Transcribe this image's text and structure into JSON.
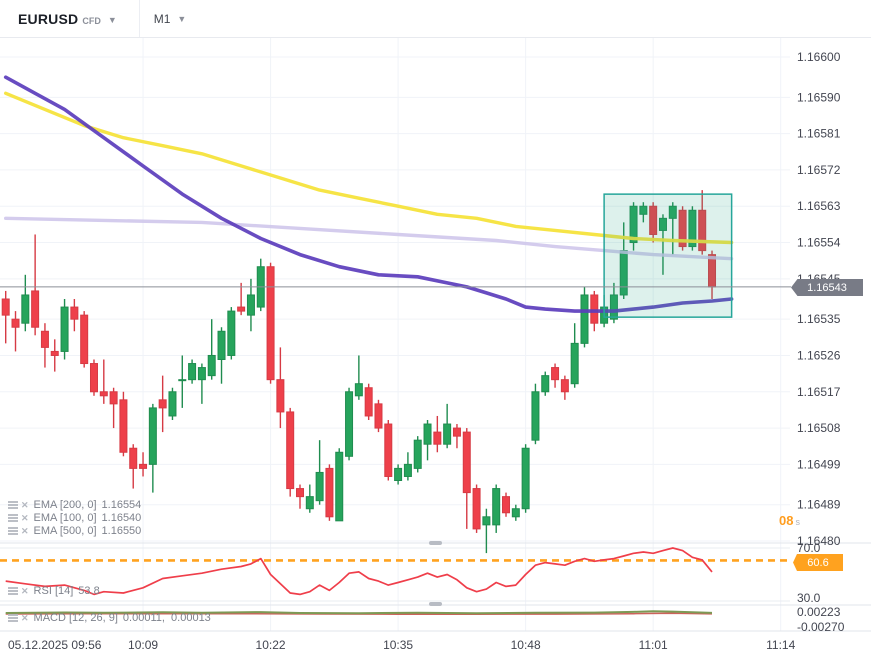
{
  "header": {
    "symbol": "EURUSD",
    "instrument_type": "CFD",
    "timeframe": "M1"
  },
  "legend": {
    "ema": [
      {
        "label": "EMA [200, 0]",
        "value": "1.16554"
      },
      {
        "label": "EMA [100, 0]",
        "value": "1.16540"
      },
      {
        "label": "EMA [500, 0]",
        "value": "1.16550"
      }
    ],
    "rsi": {
      "label": "RSI [14]",
      "value": "53.8"
    },
    "macd": {
      "label": "MACD [12, 26, 9]",
      "value": "0.00011,  0.00013"
    }
  },
  "price_axis_labels": [
    "1.16600",
    "1.16590",
    "1.16581",
    "1.16572",
    "1.16563",
    "1.16554",
    "1.16545",
    "1.16535",
    "1.16526",
    "1.16517",
    "1.16508",
    "1.16499",
    "1.16489",
    "1.16480"
  ],
  "rsi_scale_labels": [
    "70.0",
    "30.0"
  ],
  "macd_scale_labels": [
    "0.00223",
    "-0.00270"
  ],
  "time_ticks": [
    {
      "i": 1,
      "text": "05.12.2025  09:56",
      "grid": false
    },
    {
      "i": 14,
      "text": "10:09",
      "grid": true
    },
    {
      "i": 27,
      "text": "10:22",
      "grid": true
    },
    {
      "i": 40,
      "text": "10:35",
      "grid": true
    },
    {
      "i": 53,
      "text": "10:48",
      "grid": true
    },
    {
      "i": 66,
      "text": "11:01",
      "grid": true
    },
    {
      "i": 79,
      "text": "11:14",
      "grid": true
    }
  ],
  "badges": {
    "current_price": "1.16543",
    "rsi_level": "60.6",
    "countdown": "08",
    "countdown_unit": "s"
  },
  "colors": {
    "candle_up": "#26a45c",
    "candle_up_stroke": "#1f8c4f",
    "candle_down": "#ee404a",
    "candle_down_stroke": "#d63a44",
    "ema200": "#f5e33c",
    "ema100": "#5b3dbc",
    "ema500": "#ccc3ea",
    "price_line": "#8b8f98",
    "price_badge_bg": "#787b86",
    "selection_box_stroke": "#26a69a",
    "selection_box_fill": "rgba(42,167,136,0.16)",
    "rsi_line": "#ef3e4a",
    "rsi_dashed": "#ffa21f",
    "macd_line": "#7d9a55",
    "macd_signal": "#c85149",
    "grid": "#f0f3f8",
    "pane_border": "#e2e5eb",
    "axis_text": "#434651"
  },
  "chart_data": {
    "type": "candlestick",
    "symbol": "EURUSD",
    "interval": "1m",
    "start_time": "09:55",
    "date": "05.12.2025",
    "y_axis_range": [
      1.1648,
      1.166
    ],
    "current_price": 1.16543,
    "candles": [
      [
        1.1654,
        1.16542,
        1.16529,
        1.16536
      ],
      [
        1.16535,
        1.16537,
        1.16527,
        1.16533
      ],
      [
        1.16534,
        1.16546,
        1.16532,
        1.16541
      ],
      [
        1.16542,
        1.16556,
        1.16531,
        1.16533
      ],
      [
        1.16532,
        1.16534,
        1.16523,
        1.16528
      ],
      [
        1.16527,
        1.1653,
        1.16522,
        1.16526
      ],
      [
        1.16527,
        1.1654,
        1.16525,
        1.16538
      ],
      [
        1.16538,
        1.1654,
        1.16532,
        1.16535
      ],
      [
        1.16536,
        1.16537,
        1.16523,
        1.16524
      ],
      [
        1.16524,
        1.16525,
        1.16516,
        1.16517
      ],
      [
        1.16517,
        1.16525,
        1.16514,
        1.16516
      ],
      [
        1.16517,
        1.16518,
        1.16508,
        1.16514
      ],
      [
        1.16515,
        1.16517,
        1.16501,
        1.16502
      ],
      [
        1.16503,
        1.16504,
        1.16493,
        1.16498
      ],
      [
        1.16499,
        1.16502,
        1.16496,
        1.16498
      ],
      [
        1.16499,
        1.16514,
        1.16492,
        1.16513
      ],
      [
        1.16515,
        1.16521,
        1.16507,
        1.16513
      ],
      [
        1.16511,
        1.16518,
        1.1651,
        1.16517
      ],
      [
        1.1652,
        1.16526,
        1.16513,
        1.1652
      ],
      [
        1.1652,
        1.16525,
        1.16519,
        1.16524
      ],
      [
        1.1652,
        1.16524,
        1.16514,
        1.16523
      ],
      [
        1.16521,
        1.16535,
        1.1652,
        1.16526
      ],
      [
        1.16525,
        1.16533,
        1.16519,
        1.16532
      ],
      [
        1.16526,
        1.16538,
        1.16525,
        1.16537
      ],
      [
        1.16538,
        1.16544,
        1.16536,
        1.16537
      ],
      [
        1.16536,
        1.16545,
        1.16532,
        1.16541
      ],
      [
        1.16538,
        1.1655,
        1.16537,
        1.16548
      ],
      [
        1.16548,
        1.16549,
        1.16519,
        1.1652
      ],
      [
        1.1652,
        1.16528,
        1.16508,
        1.16512
      ],
      [
        1.16512,
        1.16513,
        1.16491,
        1.16493
      ],
      [
        1.16493,
        1.16494,
        1.16488,
        1.16491
      ],
      [
        1.16488,
        1.16494,
        1.16487,
        1.16491
      ],
      [
        1.1649,
        1.16505,
        1.16489,
        1.16497
      ],
      [
        1.16498,
        1.16499,
        1.16485,
        1.16486
      ],
      [
        1.16485,
        1.16503,
        1.16485,
        1.16502
      ],
      [
        1.16501,
        1.16518,
        1.165,
        1.16517
      ],
      [
        1.16516,
        1.16526,
        1.16515,
        1.16519
      ],
      [
        1.16518,
        1.16519,
        1.1651,
        1.16511
      ],
      [
        1.16514,
        1.16515,
        1.16507,
        1.16508
      ],
      [
        1.16509,
        1.1651,
        1.16495,
        1.16496
      ],
      [
        1.16495,
        1.16499,
        1.16494,
        1.16498
      ],
      [
        1.16496,
        1.16502,
        1.16495,
        1.16499
      ],
      [
        1.16498,
        1.16506,
        1.16497,
        1.16505
      ],
      [
        1.16504,
        1.1651,
        1.165,
        1.16509
      ],
      [
        1.16507,
        1.16511,
        1.16502,
        1.16504
      ],
      [
        1.16504,
        1.16514,
        1.16503,
        1.16509
      ],
      [
        1.16508,
        1.16509,
        1.16503,
        1.16506
      ],
      [
        1.16507,
        1.16508,
        1.16483,
        1.16492
      ],
      [
        1.16493,
        1.16494,
        1.16482,
        1.16483
      ],
      [
        1.16484,
        1.16488,
        1.16477,
        1.16486
      ],
      [
        1.16484,
        1.16494,
        1.16482,
        1.16493
      ],
      [
        1.16491,
        1.16492,
        1.16486,
        1.16487
      ],
      [
        1.16486,
        1.16489,
        1.16485,
        1.16488
      ],
      [
        1.16488,
        1.16504,
        1.16487,
        1.16503
      ],
      [
        1.16505,
        1.16519,
        1.16504,
        1.16517
      ],
      [
        1.16517,
        1.16522,
        1.16516,
        1.16521
      ],
      [
        1.16523,
        1.16524,
        1.16518,
        1.1652
      ],
      [
        1.1652,
        1.16521,
        1.16515,
        1.16517
      ],
      [
        1.16519,
        1.16534,
        1.16518,
        1.16529
      ],
      [
        1.16529,
        1.16543,
        1.16528,
        1.16541
      ],
      [
        1.16541,
        1.16542,
        1.16532,
        1.16534
      ],
      [
        1.16534,
        1.16541,
        1.16533,
        1.16538
      ],
      [
        1.16535,
        1.16544,
        1.16534,
        1.16541
      ],
      [
        1.16541,
        1.16559,
        1.1654,
        1.16552
      ],
      [
        1.16554,
        1.16564,
        1.16552,
        1.16563
      ],
      [
        1.16561,
        1.16564,
        1.16559,
        1.16563
      ],
      [
        1.16563,
        1.16564,
        1.16554,
        1.16556
      ],
      [
        1.16557,
        1.16561,
        1.16546,
        1.1656
      ],
      [
        1.1656,
        1.16564,
        1.16551,
        1.16563
      ],
      [
        1.16562,
        1.16563,
        1.16552,
        1.16553
      ],
      [
        1.16553,
        1.16563,
        1.16552,
        1.16562
      ],
      [
        1.16562,
        1.16567,
        1.16551,
        1.16552
      ],
      [
        1.16551,
        1.16552,
        1.1654,
        1.16543
      ]
    ],
    "ema200": [
      [
        0,
        1.16591
      ],
      [
        4,
        1.16587
      ],
      [
        8,
        1.16583
      ],
      [
        12,
        1.1658
      ],
      [
        16,
        1.16578
      ],
      [
        20,
        1.16576
      ],
      [
        24,
        1.16573
      ],
      [
        28,
        1.1657
      ],
      [
        32,
        1.16567
      ],
      [
        36,
        1.16565
      ],
      [
        40,
        1.16563
      ],
      [
        44,
        1.16561
      ],
      [
        48,
        1.1656
      ],
      [
        52,
        1.16558
      ],
      [
        56,
        1.16557
      ],
      [
        60,
        1.16556
      ],
      [
        64,
        1.16555
      ],
      [
        68,
        1.165545
      ],
      [
        74,
        1.16554
      ]
    ],
    "ema100": [
      [
        0,
        1.16595
      ],
      [
        3,
        1.16591
      ],
      [
        6,
        1.16587
      ],
      [
        10,
        1.1658
      ],
      [
        14,
        1.16573
      ],
      [
        18,
        1.16566
      ],
      [
        22,
        1.1656
      ],
      [
        26,
        1.16555
      ],
      [
        30,
        1.16551
      ],
      [
        34,
        1.16548
      ],
      [
        38,
        1.16546
      ],
      [
        42,
        1.165455
      ],
      [
        45,
        1.16544
      ],
      [
        47,
        1.16543
      ],
      [
        49,
        1.165415
      ],
      [
        51,
        1.1654
      ],
      [
        53,
        1.16538
      ],
      [
        55,
        1.165375
      ],
      [
        58,
        1.16537
      ],
      [
        62,
        1.16537
      ],
      [
        66,
        1.16538
      ],
      [
        69,
        1.16539
      ],
      [
        72,
        1.165395
      ],
      [
        74,
        1.1654
      ]
    ],
    "ema500": [
      [
        0,
        1.1656
      ],
      [
        10,
        1.165595
      ],
      [
        20,
        1.16559
      ],
      [
        30,
        1.165575
      ],
      [
        40,
        1.16556
      ],
      [
        50,
        1.165545
      ],
      [
        56,
        1.16553
      ],
      [
        61,
        1.16552
      ],
      [
        66,
        1.16551
      ],
      [
        74,
        1.1655
      ]
    ],
    "rsi14": [
      [
        0,
        45
      ],
      [
        2,
        43
      ],
      [
        4,
        41
      ],
      [
        6,
        42
      ],
      [
        8,
        38
      ],
      [
        9,
        35
      ],
      [
        10,
        37
      ],
      [
        12,
        36
      ],
      [
        14,
        40
      ],
      [
        16,
        47
      ],
      [
        18,
        49
      ],
      [
        20,
        51
      ],
      [
        22,
        54
      ],
      [
        24,
        56
      ],
      [
        25,
        58
      ],
      [
        26,
        62
      ],
      [
        27,
        50
      ],
      [
        28,
        43
      ],
      [
        29,
        36
      ],
      [
        30,
        35
      ],
      [
        31,
        37
      ],
      [
        32,
        42
      ],
      [
        33,
        38
      ],
      [
        34,
        44
      ],
      [
        35,
        51
      ],
      [
        36,
        52
      ],
      [
        37,
        47
      ],
      [
        38,
        45
      ],
      [
        39,
        42
      ],
      [
        40,
        44
      ],
      [
        41,
        46
      ],
      [
        42,
        48
      ],
      [
        43,
        51
      ],
      [
        44,
        48
      ],
      [
        45,
        50
      ],
      [
        46,
        46
      ],
      [
        47,
        40
      ],
      [
        48,
        37
      ],
      [
        49,
        39
      ],
      [
        50,
        44
      ],
      [
        51,
        41
      ],
      [
        52,
        42
      ],
      [
        53,
        50
      ],
      [
        54,
        57
      ],
      [
        55,
        59
      ],
      [
        56,
        58
      ],
      [
        57,
        57
      ],
      [
        58,
        60
      ],
      [
        59,
        62
      ],
      [
        60,
        60
      ],
      [
        61,
        61
      ],
      [
        62,
        62
      ],
      [
        63,
        64
      ],
      [
        64,
        66
      ],
      [
        65,
        67
      ],
      [
        66,
        66
      ],
      [
        67,
        68
      ],
      [
        68,
        70
      ],
      [
        69,
        68
      ],
      [
        70,
        63
      ],
      [
        71,
        61
      ],
      [
        72,
        52
      ]
    ],
    "rsi_dashed_level": 60.6,
    "rsi_range": [
      30.0,
      70.0
    ],
    "macd": [
      [
        0,
        0.0001
      ],
      [
        6,
        0.00016
      ],
      [
        10,
        0.00012
      ],
      [
        16,
        0.00018
      ],
      [
        20,
        0.00012
      ],
      [
        26,
        0.0002
      ],
      [
        30,
        0.0001
      ],
      [
        36,
        8e-05
      ],
      [
        42,
        0.00012
      ],
      [
        48,
        8e-05
      ],
      [
        54,
        0.00012
      ],
      [
        60,
        0.00014
      ],
      [
        64,
        0.00022
      ],
      [
        66,
        0.0003
      ],
      [
        68,
        0.00026
      ],
      [
        70,
        0.00018
      ],
      [
        72,
        0.00011
      ]
    ],
    "macd_signal": [
      [
        0,
        0.00012
      ],
      [
        8,
        0.00014
      ],
      [
        16,
        0.00015
      ],
      [
        24,
        0.00016
      ],
      [
        32,
        0.00012
      ],
      [
        40,
        0.0001
      ],
      [
        48,
        0.0001
      ],
      [
        56,
        0.00011
      ],
      [
        64,
        0.00016
      ],
      [
        68,
        0.0002
      ],
      [
        72,
        0.00013
      ]
    ],
    "selection_box": {
      "from_i": 61.0,
      "to_i": 74.0,
      "top": 1.16566,
      "bottom": 1.165355
    }
  }
}
